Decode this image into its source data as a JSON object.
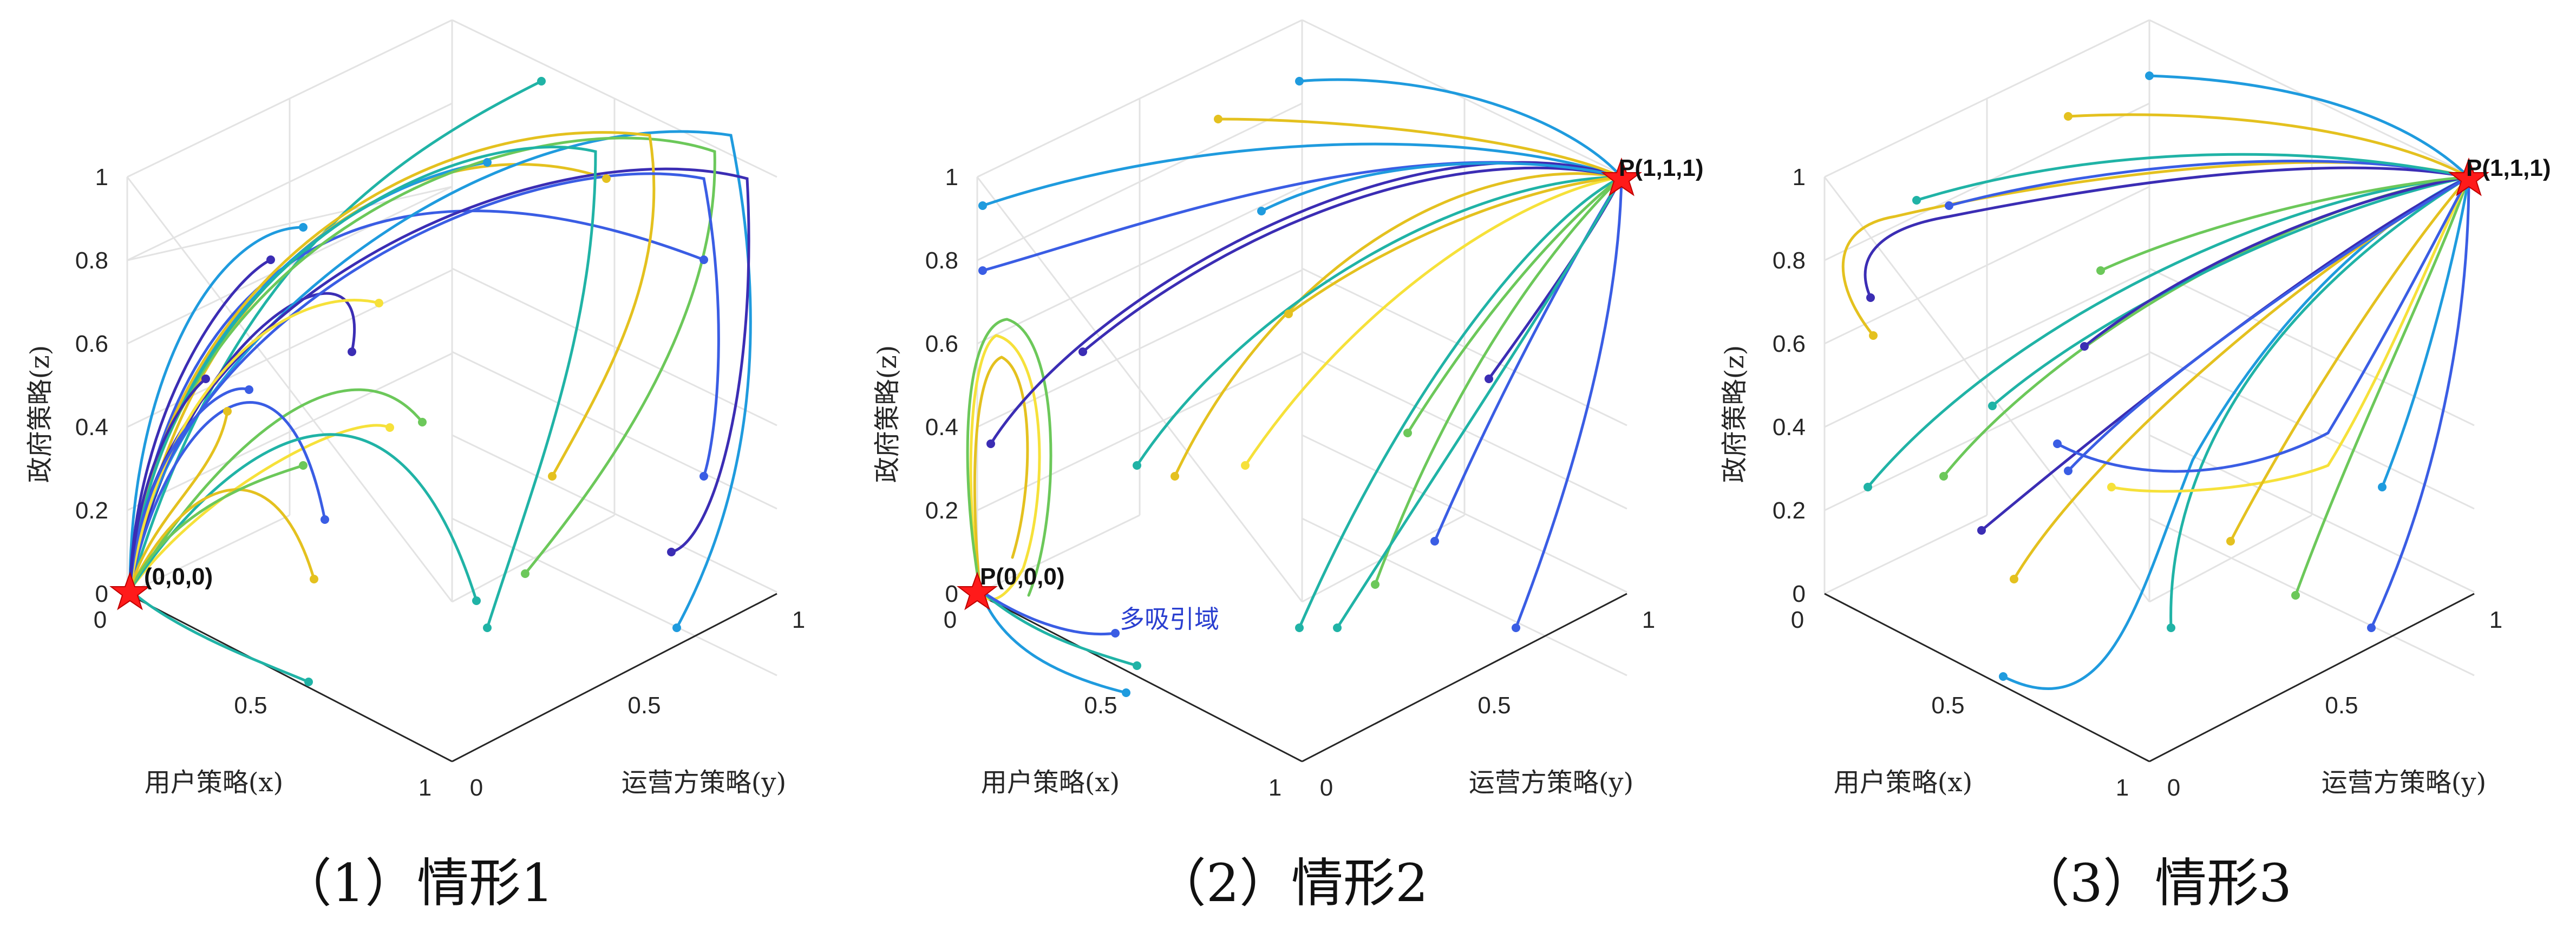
{
  "chart_data": [
    {
      "type": "phase-portrait-3d",
      "caption": "（1）情形1",
      "xlabel": "用户策略(x)",
      "ylabel": "运营方策略(y)",
      "zlabel": "政府策略(z)",
      "xlim": [
        0,
        1
      ],
      "ylim": [
        0,
        1
      ],
      "zlim": [
        0,
        1
      ],
      "x_ticks": [
        "0",
        "0.5",
        "1"
      ],
      "y_ticks": [
        "0",
        "0.5",
        "1"
      ],
      "z_ticks": [
        "0",
        "0.2",
        "0.4",
        "0.6",
        "0.8",
        "1"
      ],
      "grid": true,
      "colormap": [
        "#3b2db4",
        "#3a5de4",
        "#1f9bde",
        "#20b3a6",
        "#6cc85a",
        "#e4c11f",
        "#f6e13a"
      ],
      "equilibrium": {
        "label": "(0,0,0)",
        "point": [
          0,
          0,
          0
        ],
        "marker": "red-star"
      },
      "annotation": ""
    },
    {
      "type": "phase-portrait-3d",
      "caption": "（2）情形2",
      "xlabel": "用户策略(x)",
      "ylabel": "运营方策略(y)",
      "zlabel": "政府策略(z)",
      "xlim": [
        0,
        1
      ],
      "ylim": [
        0,
        1
      ],
      "zlim": [
        0,
        1
      ],
      "x_ticks": [
        "0",
        "0.5",
        "1"
      ],
      "y_ticks": [
        "0",
        "0.5",
        "1"
      ],
      "z_ticks": [
        "0",
        "0.2",
        "0.4",
        "0.6",
        "0.8",
        "1"
      ],
      "grid": true,
      "colormap": [
        "#3b2db4",
        "#3a5de4",
        "#1f9bde",
        "#20b3a6",
        "#6cc85a",
        "#e4c11f",
        "#f6e13a"
      ],
      "equilibria": [
        {
          "label": "P(0,0,0)",
          "point": [
            0,
            0,
            0
          ],
          "marker": "red-star"
        },
        {
          "label": "P(1,1,1)",
          "point": [
            1,
            1,
            1
          ],
          "marker": "red-star"
        }
      ],
      "annotation": "多吸引域"
    },
    {
      "type": "phase-portrait-3d",
      "caption": "（3）情形3",
      "xlabel": "用户策略(x)",
      "ylabel": "运营方策略(y)",
      "zlabel": "政府策略(z)",
      "xlim": [
        0,
        1
      ],
      "ylim": [
        0,
        1
      ],
      "zlim": [
        0,
        1
      ],
      "x_ticks": [
        "0",
        "0.5",
        "1"
      ],
      "y_ticks": [
        "0",
        "0.5",
        "1"
      ],
      "z_ticks": [
        "0",
        "0.2",
        "0.4",
        "0.6",
        "0.8",
        "1"
      ],
      "grid": true,
      "colormap": [
        "#3b2db4",
        "#3a5de4",
        "#1f9bde",
        "#20b3a6",
        "#6cc85a",
        "#e4c11f",
        "#f6e13a"
      ],
      "equilibrium": {
        "label": "P(1,1,1)",
        "point": [
          1,
          1,
          1
        ],
        "marker": "red-star"
      },
      "annotation": ""
    }
  ]
}
